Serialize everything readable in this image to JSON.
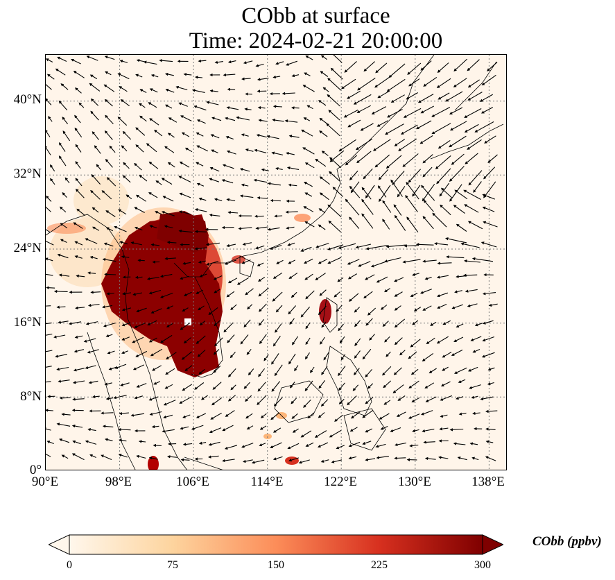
{
  "title": {
    "line1": "CObb at surface",
    "line2": "Time: 2024-02-21 20:00:00"
  },
  "map": {
    "variable": "CObb",
    "units": "ppbv",
    "extent_lon": [
      90,
      140
    ],
    "extent_lat": [
      0,
      45
    ],
    "y_ticks": [
      {
        "label": "40°N",
        "lat": 40
      },
      {
        "label": "32°N",
        "lat": 32
      },
      {
        "label": "24°N",
        "lat": 24
      },
      {
        "label": "16°N",
        "lat": 16
      },
      {
        "label": "8°N",
        "lat": 8
      },
      {
        "label": "0°",
        "lat": 0
      }
    ],
    "x_ticks": [
      {
        "label": "90°E",
        "lon": 90
      },
      {
        "label": "98°E",
        "lon": 98
      },
      {
        "label": "106°E",
        "lon": 106
      },
      {
        "label": "114°E",
        "lon": 114
      },
      {
        "label": "122°E",
        "lon": 122
      },
      {
        "label": "130°E",
        "lon": 130
      },
      {
        "label": "138°E",
        "lon": 138
      }
    ],
    "gridlines": true,
    "wind_vectors": true,
    "colormap": "OrRd"
  },
  "colorbar": {
    "label": "CObb (ppbv)",
    "min": 0,
    "max": 300,
    "ticks": [
      "0",
      "75",
      "150",
      "225",
      "300"
    ],
    "colors": [
      "#fff7ec",
      "#fdd49e",
      "#fc8d59",
      "#d7301f",
      "#7f0000"
    ],
    "extend": "both"
  }
}
